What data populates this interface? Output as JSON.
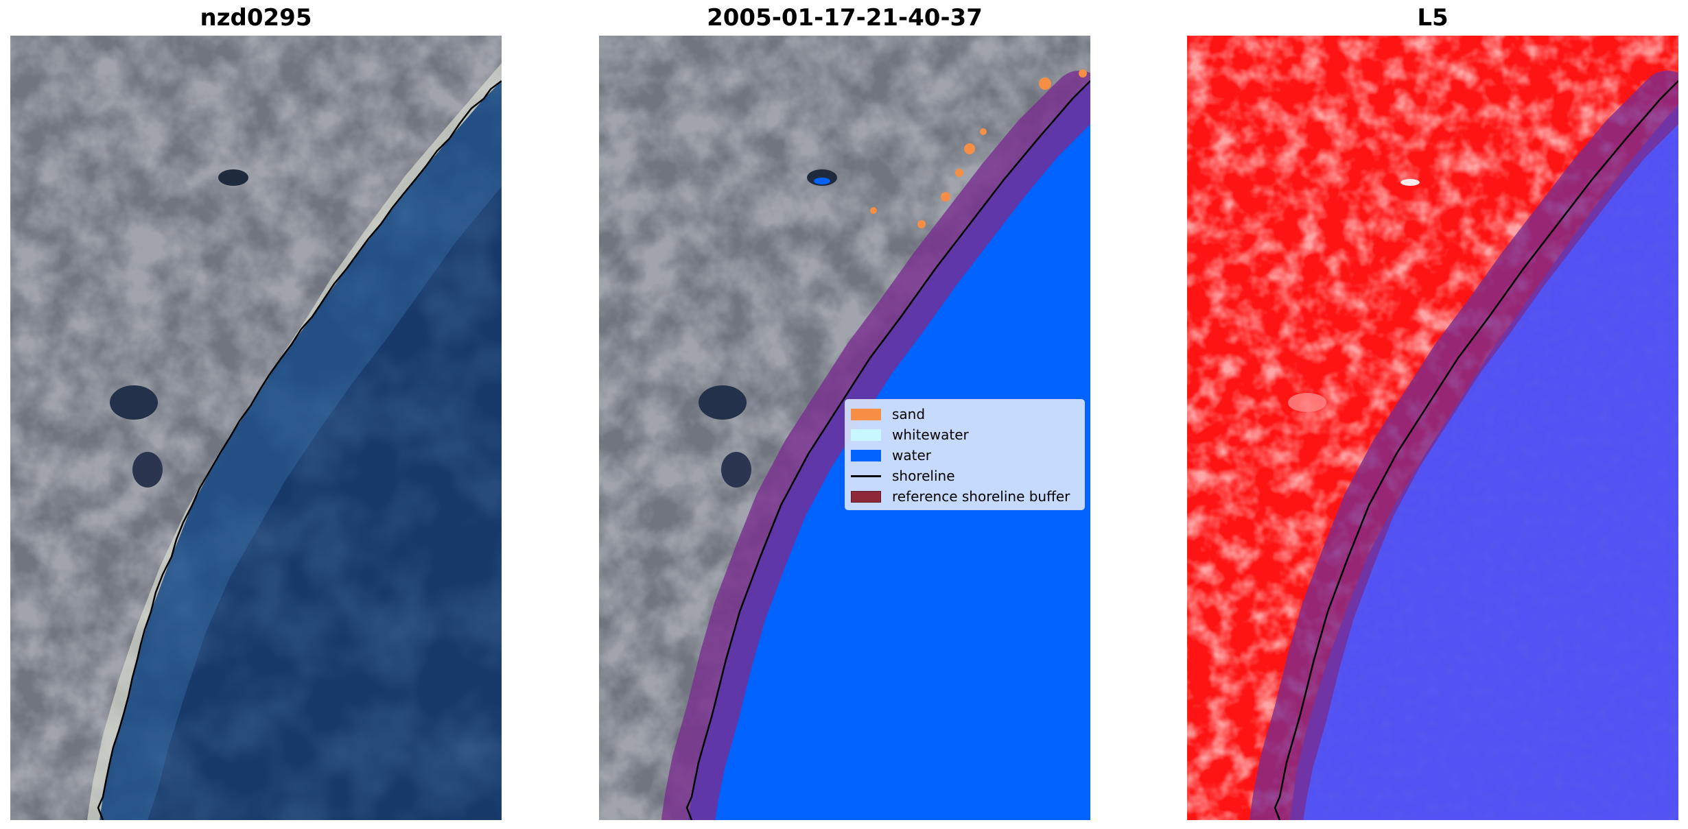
{
  "panels": [
    {
      "title": "nzd0295"
    },
    {
      "title": "2005-01-17-21-40-37"
    },
    {
      "title": "L5"
    }
  ],
  "legend": {
    "placement": "center-right",
    "items": [
      {
        "label": "sand",
        "color": "#F68E45",
        "kind": "patch"
      },
      {
        "label": "whitewater",
        "color": "#C8F7FF",
        "kind": "patch"
      },
      {
        "label": "water",
        "color": "#0062FF",
        "kind": "patch"
      },
      {
        "label": "shoreline",
        "color": "#000000",
        "kind": "line"
      },
      {
        "label": "reference shoreline buffer",
        "color": "#8F2838",
        "kind": "patch"
      }
    ]
  },
  "colors": {
    "ocean": "#1B3C6F",
    "land": "#6E737E",
    "beach": "#DADCD2",
    "water_class": "#0062FF",
    "buffer": "#8F2838",
    "land_index": "#FF1414",
    "water_index": "#3A3AF0"
  }
}
